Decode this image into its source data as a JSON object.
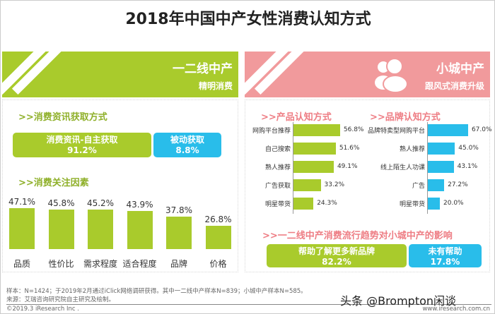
{
  "title": "2018年中国中产女性消费认知方式",
  "left": {
    "header": "一二线中产",
    "subheader": "精明消费",
    "color": "#a9cb2c",
    "section1": ">>消费资讯获取方式",
    "info_boxes": [
      {
        "label": "消费资讯-自主获取",
        "value": "91.2%",
        "color": "#a9cb2c"
      },
      {
        "label": "被动获取",
        "value": "8.8%",
        "color": "#29bdea"
      }
    ],
    "section2": ">>消费关注因素"
  },
  "right": {
    "header": "小城中产",
    "subheader": "跟风式消费升级",
    "color": "#f19a9c",
    "icon": "users-icon",
    "section1": ">>产品认知方式",
    "section2": ">>品牌认知方式",
    "section3": ">>一二线中产消费流行趋势对小城中产的影响",
    "influence_boxes": [
      {
        "label": "帮助了解更多新品牌",
        "value": "82.2%",
        "color": "#a9cb2c"
      },
      {
        "label": "未有帮助",
        "value": "17.8%",
        "color": "#29bdea"
      }
    ]
  },
  "chart_data": [
    {
      "type": "bar",
      "orientation": "vertical",
      "categories": [
        "品质",
        "性价比",
        "需求程度",
        "适合程度",
        "品牌",
        "价格"
      ],
      "values": [
        47.1,
        45.8,
        45.2,
        43.9,
        37.8,
        26.8
      ],
      "labels": [
        "47.1%",
        "45.8%",
        "45.2%",
        "43.9%",
        "37.8%",
        "26.8%"
      ],
      "color": "#a9cb2c"
    },
    {
      "type": "bar",
      "orientation": "horizontal",
      "title": ">>产品认知方式",
      "categories": [
        "网购平台推荐",
        "自己搜索",
        "熟人推荐",
        "广告获取",
        "明星带货"
      ],
      "values": [
        56.8,
        51.6,
        49.1,
        33.2,
        24.3
      ],
      "labels": [
        "56.8%",
        "51.6%",
        "49.1%",
        "33.2%",
        "24.3%"
      ],
      "color": "#a9cb2c"
    },
    {
      "type": "bar",
      "orientation": "horizontal",
      "title": ">>品牌认知方式",
      "categories": [
        "品牌特卖型网购平台",
        "熟人推荐",
        "线上陌生人功课",
        "广告",
        "明星带货"
      ],
      "values": [
        67.0,
        45.0,
        43.1,
        27.2,
        20.0
      ],
      "labels": [
        "67.0%",
        "45.0%",
        "43.1%",
        "27.2%",
        "20.0%"
      ],
      "color": "#29bdea"
    }
  ],
  "footer": {
    "note1": "样本：N=1424；于2019年2月通过iClick网络调研获得。其中一二线中产样本N=839；小城中产样本N=585。",
    "note2": "来源：艾瑞咨询研究院自主研究及绘制。",
    "copyright": "©2019.3 iResearch Inc .",
    "site": "www.iresearch.com.cn",
    "watermark": "头条 @Brompton闲谈"
  }
}
